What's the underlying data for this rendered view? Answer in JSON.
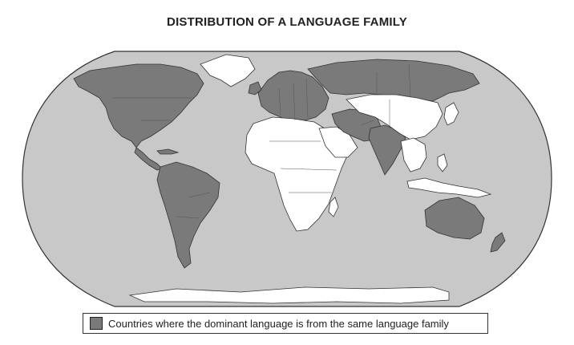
{
  "title": "DISTRIBUTION OF A LANGUAGE FAMILY",
  "legend": {
    "label": "Countries where the dominant language is from the same language family"
  },
  "colors": {
    "ocean": "#c8c8c8",
    "highlighted_land": "#7a7a7a",
    "other_land": "#ffffff",
    "outline": "#333333"
  },
  "regions": {
    "highlighted": [
      "North America",
      "Central America",
      "South America",
      "Europe",
      "Russia",
      "Iran",
      "Afghanistan",
      "Pakistan",
      "India",
      "Bangladesh",
      "Australia",
      "New Zealand"
    ],
    "other": [
      "Africa",
      "Arabian Peninsula",
      "China",
      "Mongolia",
      "Japan",
      "Korea",
      "Southeast Asia",
      "Indonesia",
      "Greenland",
      "Antarctica"
    ]
  }
}
